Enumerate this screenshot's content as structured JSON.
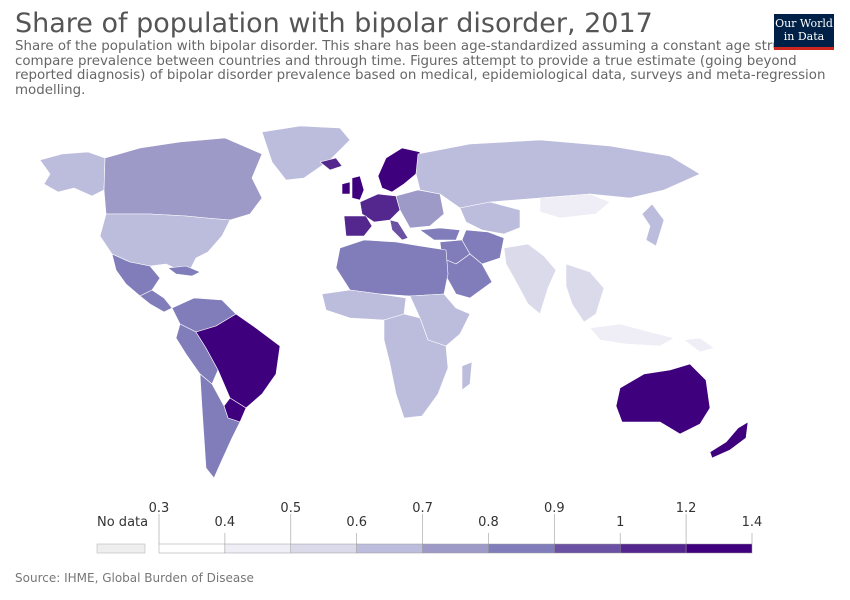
{
  "header": {
    "title": "Share of population with bipolar disorder, 2017",
    "subtitle": "Share of the population with bipolar disorder. This share has been age-standardized assuming a constant age structure to compare prevalence between countries and through time. Figures attempt to provide a true estimate (going beyond reported diagnosis) of bipolar disorder prevalence based on medical, epidemiological data, surveys and meta-regression modelling.",
    "logo_line1": "Our World",
    "logo_line2": "in Data"
  },
  "legend": {
    "no_data_label": "No data",
    "no_data_color": "#eeeeee",
    "thresholds": [
      "0.3%",
      "0.4%",
      "0.5%",
      "0.6%",
      "0.7%",
      "0.8%",
      "0.9%",
      "1%",
      "1.2%",
      "1.4%"
    ],
    "colors": [
      "#ffffff",
      "#efedf5",
      "#dadaeb",
      "#bcbddc",
      "#9e9ac8",
      "#807dba",
      "#6a51a3",
      "#54278f",
      "#3f007d"
    ]
  },
  "map_data": {
    "type": "choropleth",
    "year": 2017,
    "unit": "%",
    "regions": [
      {
        "region": "Canada",
        "value": 0.75
      },
      {
        "region": "United States",
        "value": 0.65
      },
      {
        "region": "Alaska",
        "value": 0.65
      },
      {
        "region": "Greenland",
        "value": 0.65
      },
      {
        "region": "Mexico",
        "value": 0.85
      },
      {
        "region": "Central America",
        "value": 0.8
      },
      {
        "region": "Caribbean",
        "value": 0.8
      },
      {
        "region": "Colombia/Venezuela",
        "value": 0.8
      },
      {
        "region": "Peru/Bolivia",
        "value": 0.8
      },
      {
        "region": "Brazil",
        "value": 1.3
      },
      {
        "region": "Paraguay/Uruguay",
        "value": 1.25
      },
      {
        "region": "Argentina/Chile",
        "value": 0.8
      },
      {
        "region": "Iceland",
        "value": 1.1
      },
      {
        "region": "United Kingdom",
        "value": 1.25
      },
      {
        "region": "Ireland",
        "value": 1.25
      },
      {
        "region": "Scandinavia",
        "value": 1.25
      },
      {
        "region": "Western Europe",
        "value": 1.05
      },
      {
        "region": "Spain/Portugal",
        "value": 1.05
      },
      {
        "region": "Italy",
        "value": 0.95
      },
      {
        "region": "Eastern Europe",
        "value": 0.75
      },
      {
        "region": "Russia",
        "value": 0.65
      },
      {
        "region": "Central Asia",
        "value": 0.65
      },
      {
        "region": "Turkey",
        "value": 0.85
      },
      {
        "region": "Middle East",
        "value": 0.85
      },
      {
        "region": "Arabian Peninsula",
        "value": 0.85
      },
      {
        "region": "Iran",
        "value": 0.85
      },
      {
        "region": "China",
        "value": 0.35
      },
      {
        "region": "Mongolia",
        "value": 0.45
      },
      {
        "region": "India",
        "value": 0.55
      },
      {
        "region": "Southeast Asia",
        "value": 0.55
      },
      {
        "region": "Indonesia",
        "value": 0.45
      },
      {
        "region": "Japan/Korea",
        "value": 0.65
      },
      {
        "region": "North Africa",
        "value": 0.85
      },
      {
        "region": "West Africa",
        "value": 0.65
      },
      {
        "region": "East Africa",
        "value": 0.65
      },
      {
        "region": "Central/Southern Africa",
        "value": 0.65
      },
      {
        "region": "Madagascar",
        "value": 0.65
      },
      {
        "region": "Australia",
        "value": 1.3
      },
      {
        "region": "New Zealand",
        "value": 1.35
      },
      {
        "region": "Papua New Guinea",
        "value": 0.45
      }
    ]
  },
  "footer": {
    "source": "Source: IHME, Global Burden of Disease"
  }
}
